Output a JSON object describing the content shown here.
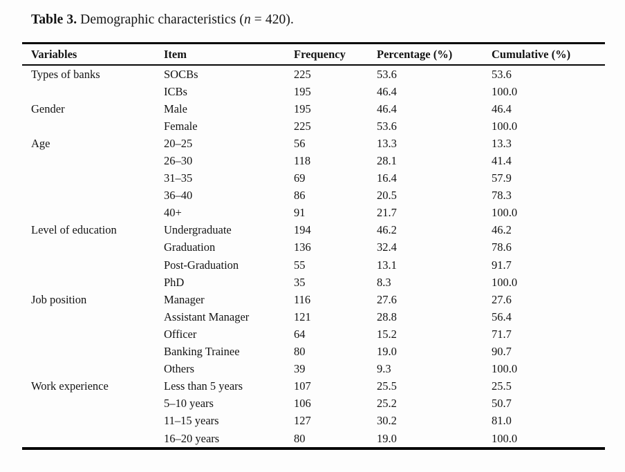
{
  "caption": {
    "label": "Table 3.",
    "before_n": " Demographic characteristics (",
    "n_symbol": "n",
    "after_n": " = 420)."
  },
  "table": {
    "headers": [
      "Variables",
      "Item",
      "Frequency",
      "Percentage (%)",
      "Cumulative (%)"
    ],
    "rows": [
      [
        "Types of banks",
        "SOCBs",
        "225",
        "53.6",
        "53.6"
      ],
      [
        "",
        "ICBs",
        "195",
        "46.4",
        "100.0"
      ],
      [
        "Gender",
        "Male",
        "195",
        "46.4",
        "46.4"
      ],
      [
        "",
        "Female",
        "225",
        "53.6",
        "100.0"
      ],
      [
        "Age",
        "20–25",
        "56",
        "13.3",
        "13.3"
      ],
      [
        "",
        "26–30",
        "118",
        "28.1",
        "41.4"
      ],
      [
        "",
        "31–35",
        "69",
        "16.4",
        "57.9"
      ],
      [
        "",
        "36–40",
        "86",
        "20.5",
        "78.3"
      ],
      [
        "",
        "40+",
        "91",
        "21.7",
        "100.0"
      ],
      [
        "Level of education",
        "Undergraduate",
        "194",
        "46.2",
        "46.2"
      ],
      [
        "",
        "Graduation",
        "136",
        "32.4",
        "78.6"
      ],
      [
        "",
        "Post-Graduation",
        "55",
        "13.1",
        "91.7"
      ],
      [
        "",
        "PhD",
        "35",
        "8.3",
        "100.0"
      ],
      [
        "Job position",
        "Manager",
        "116",
        "27.6",
        "27.6"
      ],
      [
        "",
        "Assistant Manager",
        "121",
        "28.8",
        "56.4"
      ],
      [
        "",
        "Officer",
        "64",
        "15.2",
        "71.7"
      ],
      [
        "",
        "Banking Trainee",
        "80",
        "19.0",
        "90.7"
      ],
      [
        "",
        "Others",
        "39",
        "9.3",
        "100.0"
      ],
      [
        "Work experience",
        "Less than 5 years",
        "107",
        "25.5",
        "25.5"
      ],
      [
        "",
        "5–10 years",
        "106",
        "25.2",
        "50.7"
      ],
      [
        "",
        "11–15 years",
        "127",
        "30.2",
        "81.0"
      ],
      [
        "",
        "16–20 years",
        "80",
        "19.0",
        "100.0"
      ]
    ]
  }
}
